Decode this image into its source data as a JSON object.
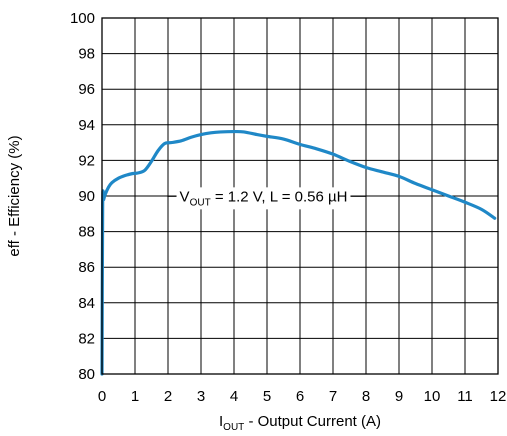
{
  "chart_data": {
    "type": "line",
    "title": "",
    "xlabel": {
      "prefix": "I",
      "sub": "OUT",
      "rest": " - Output Current (A)"
    },
    "ylabel": "eff - Efficiency (%)",
    "xlim": [
      0,
      12
    ],
    "ylim": [
      80,
      100
    ],
    "xticks": [
      "0",
      "1",
      "2",
      "3",
      "4",
      "5",
      "6",
      "7",
      "8",
      "9",
      "10",
      "11",
      "12"
    ],
    "yticks": [
      "80",
      "82",
      "84",
      "86",
      "88",
      "90",
      "92",
      "94",
      "96",
      "98",
      "100"
    ],
    "grid": true,
    "color": "#1f88c7",
    "annotation": {
      "v": "V",
      "sub": "OUT",
      "rest": " = 1.2 V, L = 0.56 µH",
      "x": 2.35,
      "y": 89.7
    },
    "series": [
      {
        "name": "",
        "x": [
          0.0,
          0.02,
          0.05,
          0.1,
          0.2,
          0.3,
          0.5,
          0.7,
          0.9,
          1.1,
          1.3,
          1.5,
          1.7,
          1.9,
          2.1,
          2.4,
          2.7,
          3.0,
          3.3,
          3.6,
          4.0,
          4.3,
          4.7,
          5.0,
          5.5,
          6.0,
          6.5,
          7.0,
          7.5,
          8.0,
          8.5,
          9.0,
          9.5,
          10.0,
          10.5,
          11.0,
          11.5,
          11.9
        ],
        "y": [
          80.0,
          89.5,
          89.8,
          90.1,
          90.5,
          90.75,
          91.0,
          91.15,
          91.25,
          91.3,
          91.45,
          91.95,
          92.55,
          92.95,
          93.0,
          93.1,
          93.3,
          93.45,
          93.55,
          93.6,
          93.62,
          93.6,
          93.45,
          93.35,
          93.2,
          92.9,
          92.65,
          92.35,
          91.95,
          91.6,
          91.35,
          91.1,
          90.7,
          90.35,
          90.0,
          89.65,
          89.25,
          88.75
        ]
      }
    ]
  }
}
